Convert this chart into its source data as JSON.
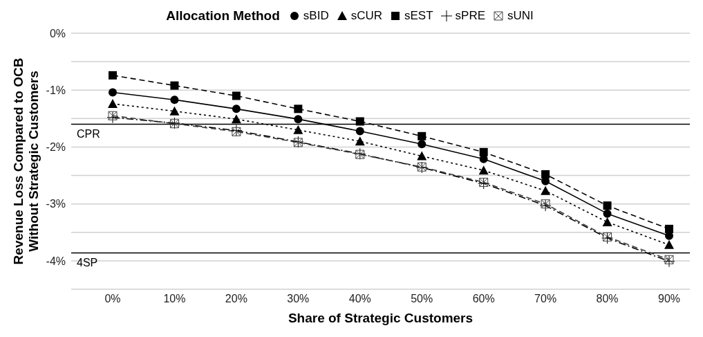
{
  "chart_data": {
    "type": "line",
    "xlabel": "Share of Strategic Customers",
    "ylabel": "Revenue Loss Compared to OCB\nWithout Strategic Customers",
    "legend_title": "Allocation Method",
    "legend": "top",
    "grid": "y",
    "categories": [
      "0%",
      "10%",
      "20%",
      "30%",
      "40%",
      "50%",
      "60%",
      "70%",
      "80%",
      "90%"
    ],
    "ylim": [
      -4.5,
      0
    ],
    "yticks": [
      {
        "value": 0,
        "label": "0%"
      },
      {
        "value": -0.5,
        "label": null
      },
      {
        "value": -1,
        "label": "-1%"
      },
      {
        "value": -1.5,
        "label": null
      },
      {
        "value": -2,
        "label": "-2%"
      },
      {
        "value": -2.5,
        "label": null
      },
      {
        "value": -3,
        "label": "-3%"
      },
      {
        "value": -3.5,
        "label": null
      },
      {
        "value": -4,
        "label": "-4%"
      },
      {
        "value": -4.5,
        "label": null
      }
    ],
    "series": [
      {
        "name": "sBID",
        "color": "#000000",
        "marker": "circle",
        "line_style": "solid",
        "values": [
          -1.04,
          -1.17,
          -1.33,
          -1.51,
          -1.72,
          -1.95,
          -2.21,
          -2.6,
          -3.17,
          -3.56
        ]
      },
      {
        "name": "sCUR",
        "color": "#000000",
        "marker": "triangle",
        "line_style": "dotted",
        "values": [
          -1.24,
          -1.37,
          -1.51,
          -1.7,
          -1.9,
          -2.16,
          -2.41,
          -2.77,
          -3.32,
          -3.72
        ]
      },
      {
        "name": "sEST",
        "color": "#000000",
        "marker": "square",
        "line_style": "dashed",
        "values": [
          -0.74,
          -0.92,
          -1.1,
          -1.33,
          -1.55,
          -1.81,
          -2.09,
          -2.48,
          -3.03,
          -3.44
        ]
      },
      {
        "name": "sPRE",
        "color": "#000000",
        "marker": "cross",
        "line_style": "dashdot",
        "values": [
          -1.48,
          -1.58,
          -1.71,
          -1.91,
          -2.12,
          -2.36,
          -2.64,
          -3.03,
          -3.6,
          -4.01
        ]
      },
      {
        "name": "sUNI",
        "color": "#404040",
        "marker": "cross",
        "line_style": "dashed",
        "values": [
          -1.45,
          -1.59,
          -1.73,
          -1.92,
          -2.13,
          -2.35,
          -2.62,
          -3.0,
          -3.58,
          -3.98
        ]
      }
    ],
    "ref_lines": [
      {
        "axis": "y",
        "value": -1.6,
        "label": "CPR",
        "color": "#000000"
      },
      {
        "axis": "y",
        "value": -3.86,
        "label": "4SP",
        "color": "#000000"
      }
    ]
  }
}
